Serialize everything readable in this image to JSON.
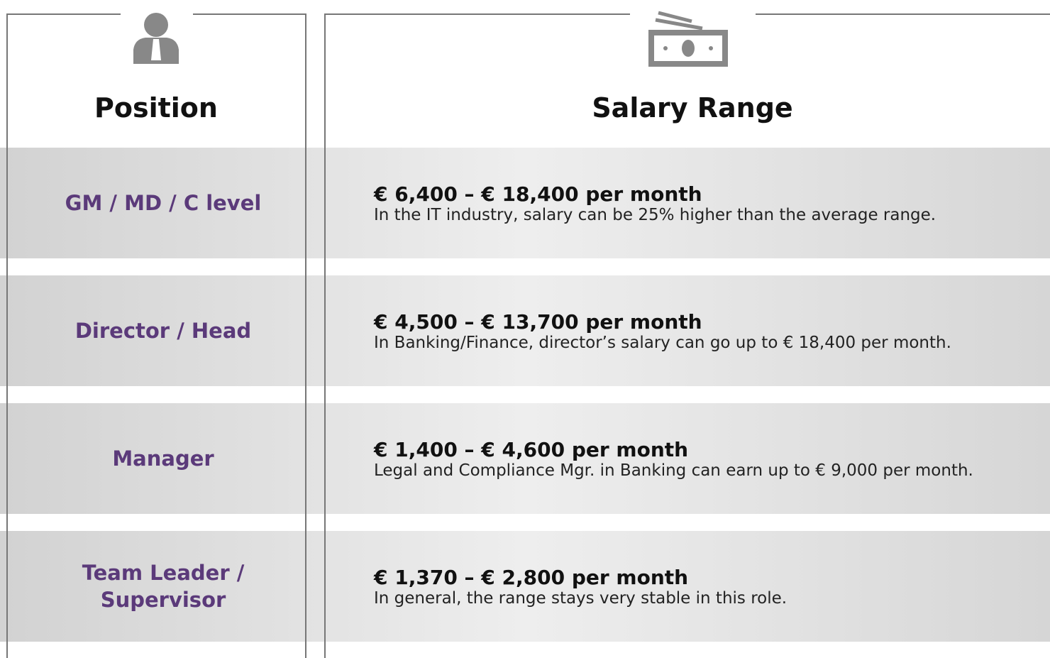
{
  "headers": {
    "position": "Position",
    "salary": "Salary Range"
  },
  "rows": [
    {
      "position": "GM / MD / C level",
      "range": "€ 6,400 – € 18,400 per month",
      "note": "In the IT industry, salary can be 25% higher than the average range."
    },
    {
      "position": "Director / Head",
      "range": "€ 4,500 – € 13,700 per month",
      "note": "In Banking/Finance, director’s salary can go up to € 18,400 per month."
    },
    {
      "position": "Manager",
      "range": "€ 1,400 – € 4,600 per month",
      "note": "Legal and Compliance Mgr. in Banking can earn up to € 9,000 per month."
    },
    {
      "position": "Team Leader / Supervisor",
      "range": "€ 1,370 – € 2,800 per month",
      "note": "In general, the range stays very stable in this role."
    }
  ]
}
